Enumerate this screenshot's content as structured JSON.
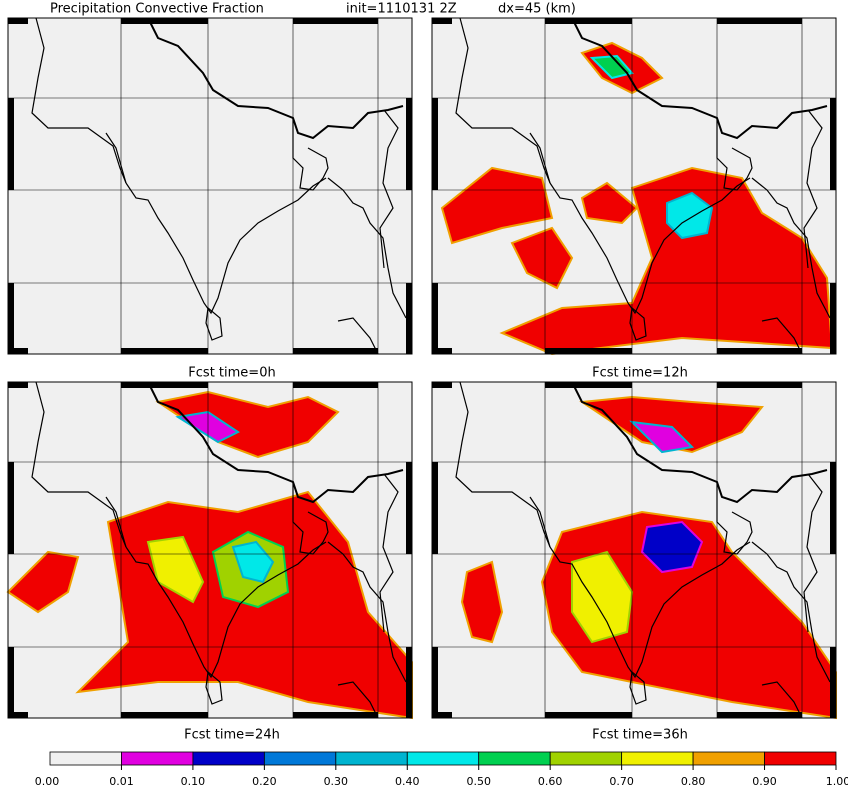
{
  "title": {
    "field": "Precipitation Convective Fraction",
    "init": "init=1110131 2Z",
    "resolution": "dx=45 (km)"
  },
  "panels": [
    {
      "label": "Fcst time=0h"
    },
    {
      "label": "Fcst time=12h"
    },
    {
      "label": "Fcst time=24h"
    },
    {
      "label": "Fcst time=36h"
    }
  ],
  "colorbar": {
    "ticks": [
      "0.00",
      "0.01",
      "0.10",
      "0.20",
      "0.30",
      "0.40",
      "0.50",
      "0.60",
      "0.70",
      "0.80",
      "0.90",
      "1.00"
    ],
    "colors": [
      "#f0f0f0",
      "#e000e0",
      "#0000c8",
      "#0078d8",
      "#00b4d0",
      "#00e8e8",
      "#00d050",
      "#a0d200",
      "#f0f000",
      "#f0a000",
      "#f00000"
    ]
  }
}
